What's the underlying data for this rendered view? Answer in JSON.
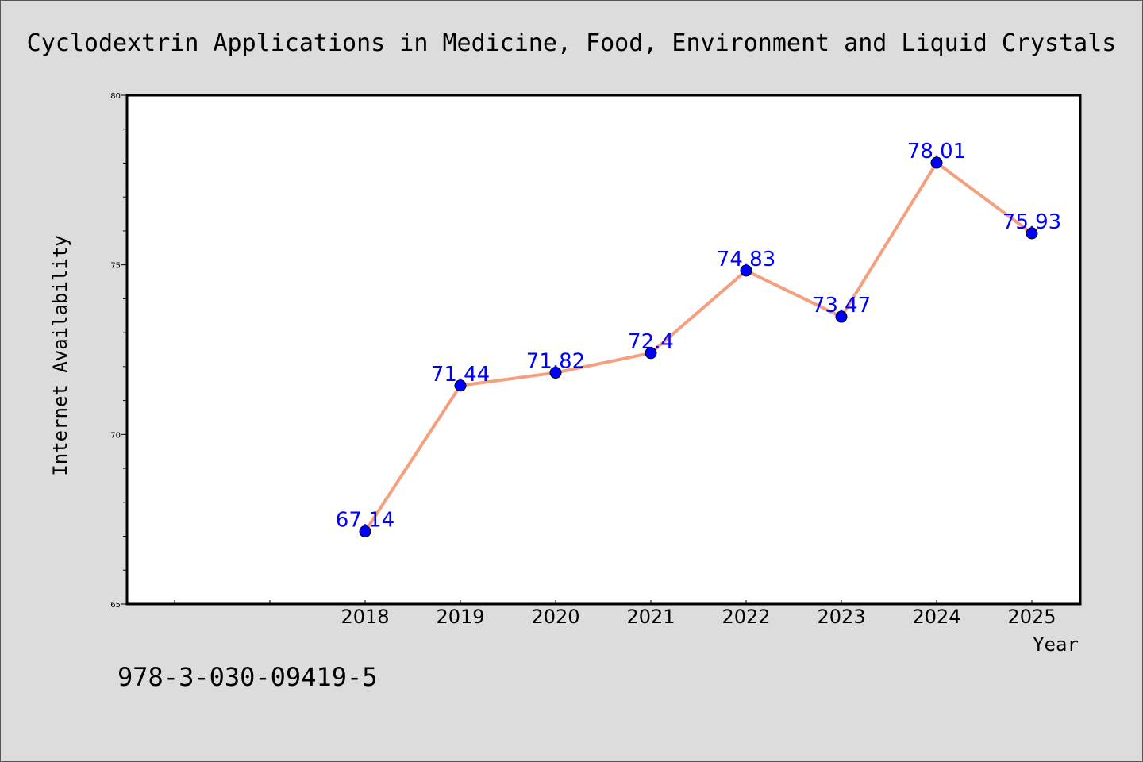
{
  "chart_data": {
    "type": "line",
    "title": "Cyclodextrin Applications in Medicine, Food, Environment and Liquid Crystals",
    "xlabel": "Year",
    "ylabel": "Internet Availability",
    "x": [
      "2018",
      "2019",
      "2020",
      "2021",
      "2022",
      "2023",
      "2024",
      "2025"
    ],
    "series": [
      {
        "values": [
          67.14,
          71.44,
          71.82,
          72.4,
          74.83,
          73.47,
          78.01,
          75.93
        ]
      }
    ],
    "data_labels": [
      "67.14",
      "71.44",
      "71.82",
      "72.4",
      "74.83",
      "73.47",
      "78.01",
      "75.93"
    ],
    "ylim": [
      65,
      80
    ],
    "y_ticks": [
      "65",
      "70",
      "75",
      "80"
    ],
    "grid": false,
    "legend": "none",
    "colors": {
      "line": "#f4a07f",
      "marker": "#0000ff",
      "label": "#0000ff",
      "background": "#dcdcdc",
      "plot_bg": "#ffffff"
    }
  },
  "footer": {
    "code": "978-3-030-09419-5"
  }
}
